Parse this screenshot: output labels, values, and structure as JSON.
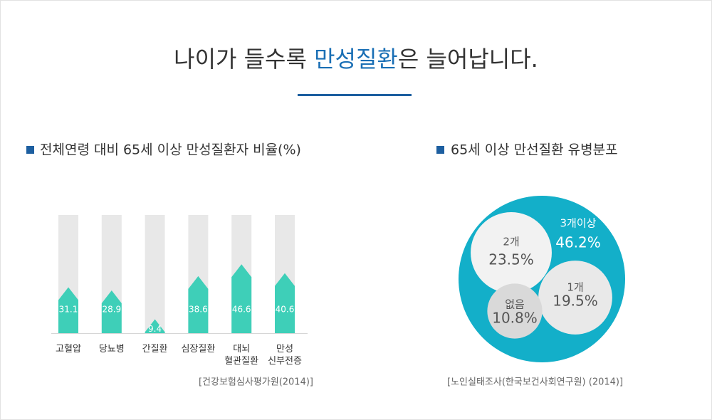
{
  "title": "나이가 들수록 만성질환은 늘어납니다.",
  "highlight": "만성질환",
  "chart_data": [
    {
      "type": "bar",
      "title": "전체연령 대비 65세 이상 만성질환자 비율(%)",
      "categories": [
        "고혈압",
        "당뇨병",
        "간질환",
        "심장질환",
        "대뇌\n혈관질환",
        "만성\n신부전증"
      ],
      "values": [
        31.1,
        28.9,
        9.4,
        38.6,
        46.6,
        40.6
      ],
      "color": "#3ecfb8",
      "track_color": "#e8e8e8",
      "ylim": [
        0,
        80
      ],
      "source": "[건강보험심사평가원(2014)]"
    },
    {
      "type": "bubble",
      "title": "65세 이상 만선질환 유병분포",
      "categories": [
        "3개이상",
        "2개",
        "1개",
        "없음"
      ],
      "values": [
        46.2,
        23.5,
        19.5,
        10.8
      ],
      "value_labels": [
        "46.2%",
        "23.5%",
        "19.5%",
        "10.8%"
      ],
      "colors": [
        "#13afc9",
        "#f2f2f2",
        "#e9e9e9",
        "#d9d9d9"
      ],
      "source": "[노인실태조사(한국보건사회연구원) (2014)]"
    }
  ]
}
